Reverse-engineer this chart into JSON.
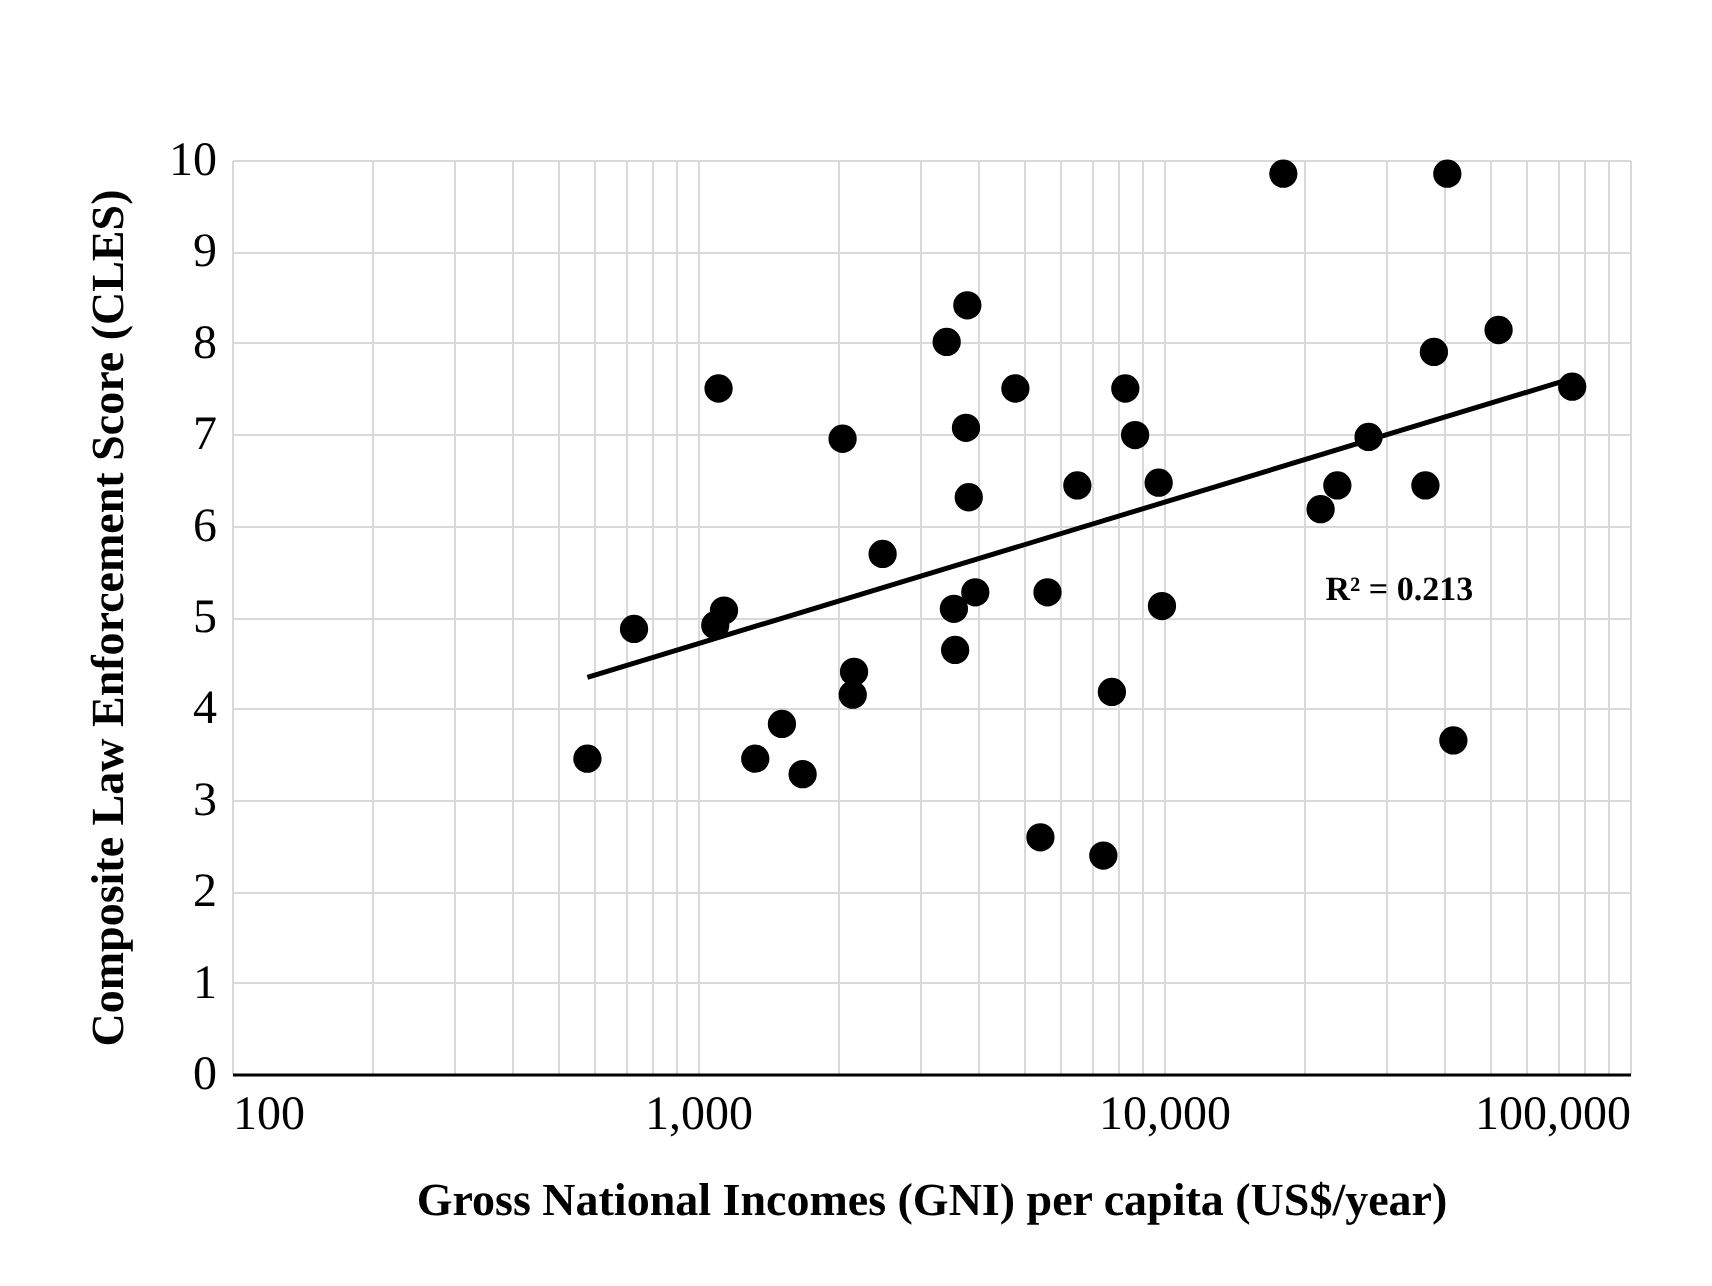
{
  "chart_data": {
    "type": "scatter",
    "xlabel": "Gross National Incomes (GNI) per capita (US$/year)",
    "ylabel": "Composite Law Enforcement Score (CLES)",
    "log": "x",
    "grid": true,
    "xlim": [
      100,
      100000
    ],
    "xticks": [
      {
        "value": 100,
        "label": "100"
      },
      {
        "value": 200,
        "label": null
      },
      {
        "value": 300,
        "label": null
      },
      {
        "value": 400,
        "label": null
      },
      {
        "value": 500,
        "label": null
      },
      {
        "value": 600,
        "label": null
      },
      {
        "value": 700,
        "label": null
      },
      {
        "value": 800,
        "label": null
      },
      {
        "value": 900,
        "label": null
      },
      {
        "value": 1000,
        "label": "1,000"
      },
      {
        "value": 2000,
        "label": null
      },
      {
        "value": 3000,
        "label": null
      },
      {
        "value": 4000,
        "label": null
      },
      {
        "value": 5000,
        "label": null
      },
      {
        "value": 6000,
        "label": null
      },
      {
        "value": 7000,
        "label": null
      },
      {
        "value": 8000,
        "label": null
      },
      {
        "value": 9000,
        "label": null
      },
      {
        "value": 10000,
        "label": "10,000"
      },
      {
        "value": 20000,
        "label": null
      },
      {
        "value": 30000,
        "label": null
      },
      {
        "value": 40000,
        "label": null
      },
      {
        "value": 50000,
        "label": null
      },
      {
        "value": 60000,
        "label": null
      },
      {
        "value": 70000,
        "label": null
      },
      {
        "value": 80000,
        "label": null
      },
      {
        "value": 90000,
        "label": null
      },
      {
        "value": 100000,
        "label": "100,000"
      }
    ],
    "ylim": [
      0,
      10
    ],
    "yticks": [
      0,
      1,
      2,
      3,
      4,
      5,
      6,
      7,
      8,
      9,
      10
    ],
    "series": [
      {
        "marker": "circle",
        "color": "#000000",
        "x": [
          579,
          729,
          1107,
          1089,
          1137,
          1327,
          1514,
          1677,
          2043,
          2162,
          2148,
          2490,
          3417,
          3784,
          3759,
          3811,
          3936,
          3541,
          3563,
          4798,
          6517,
          5623,
          5430,
          8260,
          8670,
          9740,
          9900,
          7730,
          7410,
          18030,
          21680,
          23550,
          27480,
          36390,
          37950,
          40550,
          41780,
          52240,
          75160
        ],
        "values": [
          3.45,
          4.87,
          7.5,
          4.91,
          5.07,
          3.45,
          3.83,
          3.28,
          6.95,
          4.4,
          4.15,
          5.69,
          8.01,
          8.41,
          7.07,
          6.31,
          5.27,
          5.09,
          4.64,
          7.5,
          6.44,
          5.27,
          2.59,
          7.5,
          6.99,
          6.47,
          5.12,
          4.18,
          2.39,
          9.85,
          6.18,
          6.44,
          6.97,
          6.44,
          7.9,
          9.85,
          3.65,
          8.14,
          7.52
        ]
      },
      {
        "type": "line",
        "color": "#000000",
        "x": [
          579,
          75160
        ],
        "values": [
          4.34,
          7.61
        ]
      }
    ],
    "annotations": [
      "R² = 0.213"
    ]
  }
}
